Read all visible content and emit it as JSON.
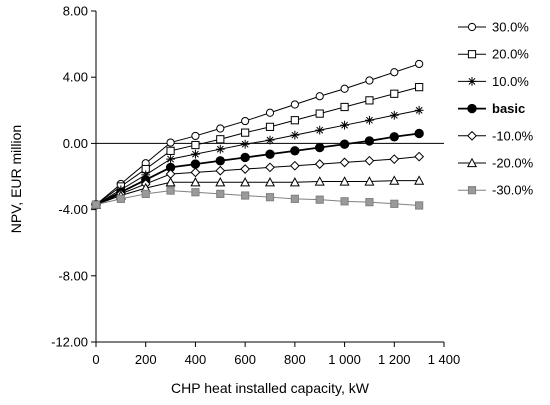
{
  "chart_data": {
    "type": "line",
    "title": "",
    "xlabel": "CHP heat installed capacity, kW",
    "ylabel": "NPV, EUR million",
    "xlim": [
      0,
      1400
    ],
    "ylim": [
      -12,
      8
    ],
    "xticks": [
      0,
      200,
      400,
      600,
      800,
      1000,
      1200,
      1400
    ],
    "xtick_labels": [
      "0",
      "200",
      "400",
      "600",
      "800",
      "1 000",
      "1 200",
      "1 400"
    ],
    "yticks": [
      8,
      4,
      0,
      -4,
      -8,
      -12
    ],
    "ytick_labels": [
      "8.00",
      "4.00",
      "0.00",
      "-4.00",
      "-8.00",
      "-12.00"
    ],
    "grid": false,
    "legend_position": "right",
    "x": [
      0,
      100,
      200,
      300,
      400,
      500,
      600,
      700,
      800,
      900,
      1000,
      1100,
      1200,
      1300
    ],
    "series": [
      {
        "name": "30.0%",
        "marker": "circle-open",
        "color": "#000000",
        "values": [
          -3.7,
          -2.45,
          -1.2,
          0.05,
          0.45,
          0.9,
          1.35,
          1.85,
          2.35,
          2.85,
          3.3,
          3.8,
          4.3,
          4.8
        ]
      },
      {
        "name": "20.0%",
        "marker": "square-open",
        "color": "#000000",
        "values": [
          -3.7,
          -2.6,
          -1.55,
          -0.45,
          -0.1,
          0.25,
          0.65,
          1.0,
          1.4,
          1.8,
          2.2,
          2.6,
          3.0,
          3.4
        ]
      },
      {
        "name": "10.0%",
        "marker": "asterisk",
        "color": "#000000",
        "values": [
          -3.7,
          -2.8,
          -1.9,
          -0.95,
          -0.65,
          -0.35,
          -0.05,
          0.2,
          0.5,
          0.8,
          1.1,
          1.4,
          1.7,
          2.0
        ]
      },
      {
        "name": "basic",
        "marker": "circle-filled",
        "color": "#000000",
        "values": [
          -3.7,
          -2.95,
          -2.2,
          -1.45,
          -1.25,
          -1.05,
          -0.85,
          -0.65,
          -0.45,
          -0.25,
          -0.05,
          0.15,
          0.4,
          0.6
        ]
      },
      {
        "name": "-10.0%",
        "marker": "diamond-open",
        "color": "#000000",
        "values": [
          -3.7,
          -3.05,
          -2.45,
          -1.85,
          -1.75,
          -1.65,
          -1.55,
          -1.45,
          -1.35,
          -1.25,
          -1.15,
          -1.05,
          -0.95,
          -0.8
        ]
      },
      {
        "name": "-20.0%",
        "marker": "triangle-open",
        "color": "#000000",
        "values": [
          -3.7,
          -3.15,
          -2.7,
          -2.35,
          -2.35,
          -2.35,
          -2.35,
          -2.35,
          -2.35,
          -2.3,
          -2.3,
          -2.3,
          -2.25,
          -2.25
        ]
      },
      {
        "name": "-30.0%",
        "marker": "square-gray",
        "color": "#808080",
        "values": [
          -3.7,
          -3.35,
          -3.05,
          -2.85,
          -2.95,
          -3.05,
          -3.15,
          -3.25,
          -3.35,
          -3.4,
          -3.5,
          -3.55,
          -3.65,
          -3.75
        ]
      }
    ]
  }
}
